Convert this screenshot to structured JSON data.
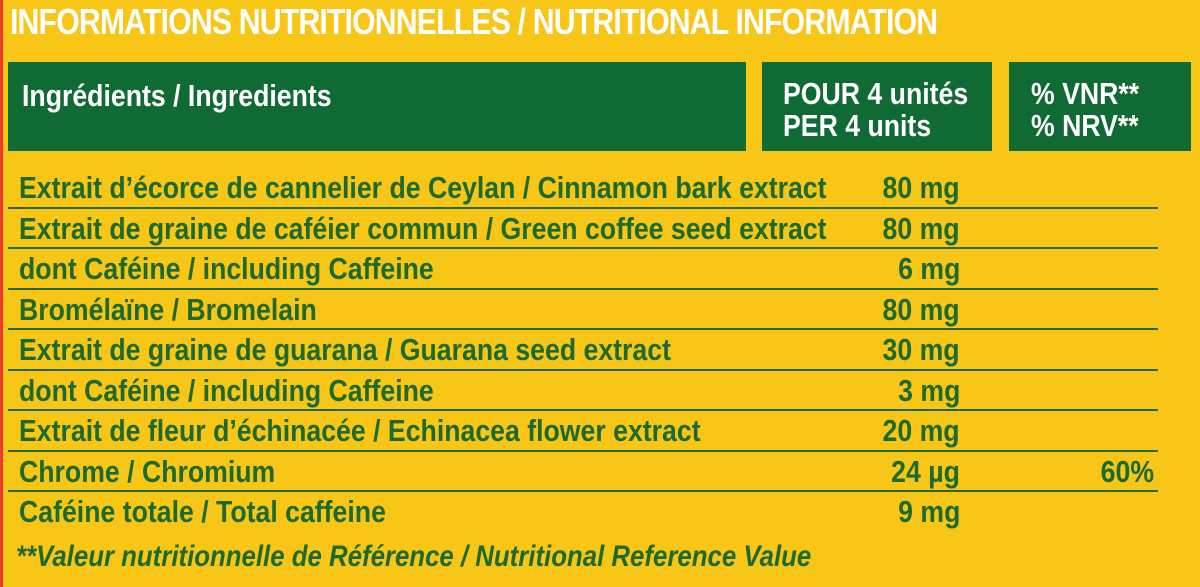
{
  "title": "INFORMATIONS NUTRITIONNELLES / NUTRITIONAL INFORMATION",
  "header": {
    "ingredients": "Ingrédients / Ingredients",
    "per_line1": "POUR 4 unités",
    "per_line2": "PER 4 units",
    "nrv_line1": "% VNR**",
    "nrv_line2": "% NRV**"
  },
  "rows": [
    {
      "name": "Extrait d’écorce de cannelier de Ceylan / Cinnamon bark extract",
      "amount": "80 mg",
      "nrv": ""
    },
    {
      "name": "Extrait de graine de caféier commun / Green coffee seed extract",
      "amount": "80 mg",
      "nrv": ""
    },
    {
      "name": "dont Caféine / including Caffeine",
      "amount": "6 mg",
      "nrv": ""
    },
    {
      "name": "Bromélaïne / Bromelain",
      "amount": "80 mg",
      "nrv": ""
    },
    {
      "name": "Extrait de graine de guarana / Guarana seed extract",
      "amount": "30 mg",
      "nrv": ""
    },
    {
      "name": "dont Caféine / including Caffeine",
      "amount": "3 mg",
      "nrv": ""
    },
    {
      "name": "Extrait de fleur d’échinacée / Echinacea flower extract",
      "amount": "20 mg",
      "nrv": ""
    },
    {
      "name": "Chrome / Chromium",
      "amount": "24 µg",
      "nrv": "60%"
    },
    {
      "name": "Caféine totale / Total caffeine",
      "amount": "9 mg",
      "nrv": ""
    }
  ],
  "footnote": "**Valeur nutritionnelle de Référence / Nutritional Reference Value",
  "colors": {
    "background": "#f7c616",
    "header_green": "#106a34",
    "text_green": "#1d6a2c",
    "title_white": "#ffffff"
  }
}
